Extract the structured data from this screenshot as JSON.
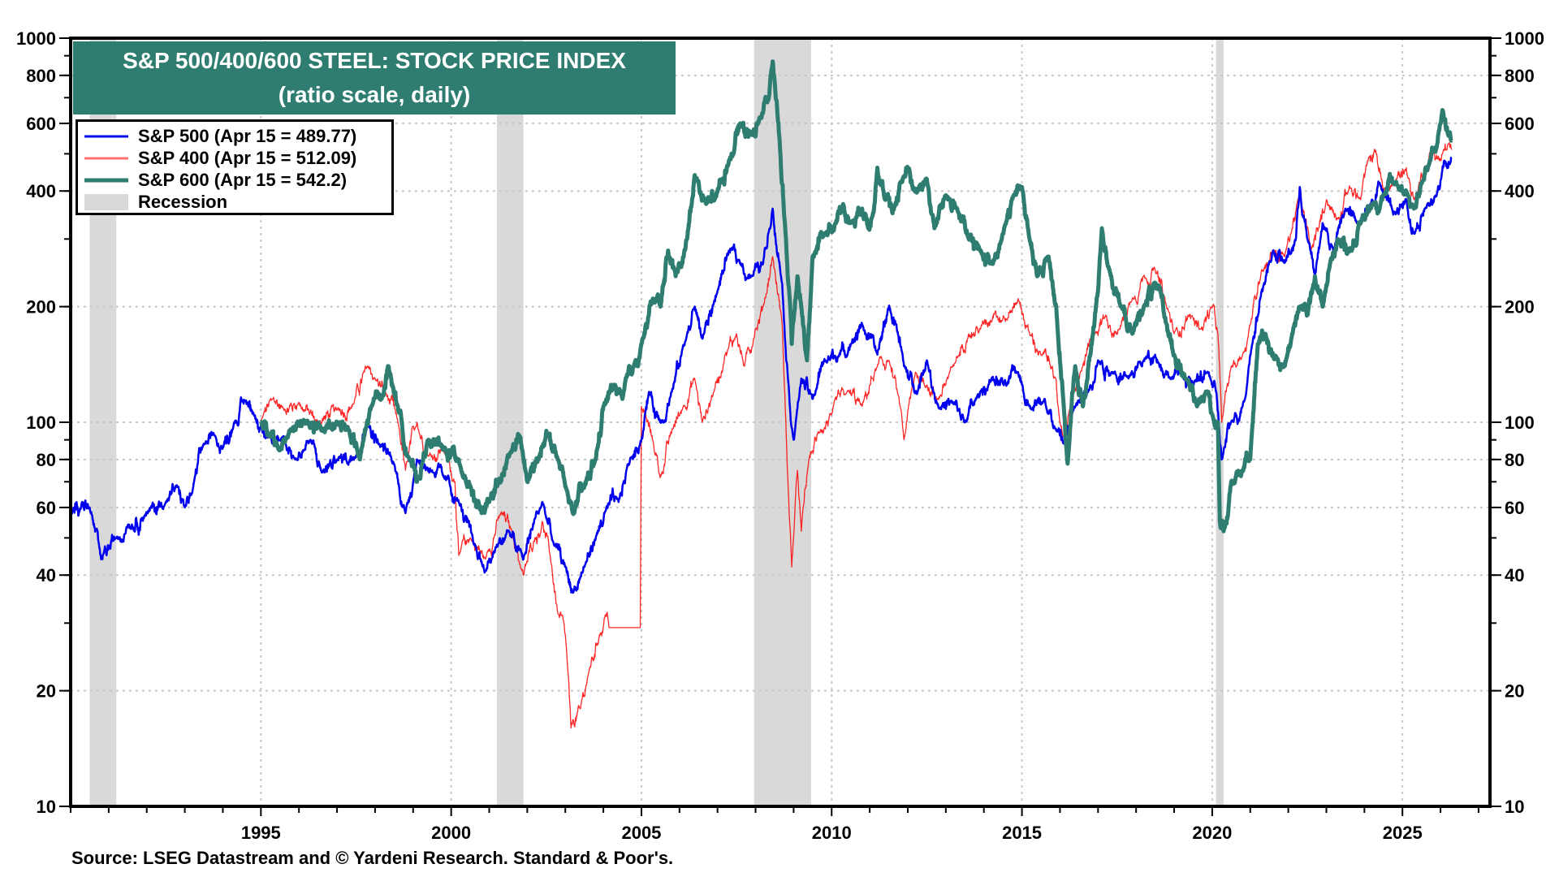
{
  "chart_data": {
    "type": "line",
    "title": "S&P 500/400/600 STEEL: STOCK PRICE INDEX",
    "subtitle": "(ratio scale, daily)",
    "xlabel": "",
    "ylabel": "",
    "yscale": "log",
    "ylim": [
      10,
      1000
    ],
    "xlim": [
      1990.0,
      2027.3
    ],
    "y_ticks": [
      10,
      20,
      40,
      60,
      80,
      100,
      200,
      400,
      600,
      800,
      1000
    ],
    "y_tick_labels": [
      "10",
      "20",
      "40",
      "60",
      "80",
      "100",
      "200",
      "400",
      "600",
      "800",
      "1000"
    ],
    "x_ticks": [
      1995,
      2000,
      2005,
      2010,
      2015,
      2020,
      2025
    ],
    "x_tick_labels": [
      "1995",
      "2000",
      "2005",
      "2010",
      "2015",
      "2020",
      "2025"
    ],
    "grid": true,
    "legend_position": "top-left",
    "recessions": [
      {
        "start": 1990.5,
        "end": 1991.2
      },
      {
        "start": 2001.2,
        "end": 2001.9
      },
      {
        "start": 2007.96,
        "end": 2009.46
      },
      {
        "start": 2020.1,
        "end": 2020.3
      }
    ],
    "recession_label": "Recession",
    "recession_color": "#d9d9d9",
    "series": [
      {
        "name": "S&P 500",
        "label": "S&P 500 (Apr 15 = 489.77)",
        "color": "#0000ee",
        "last_value": 489.77,
        "x": [
          1990.0,
          1990.3,
          1990.5,
          1990.8,
          1991.2,
          1991.5,
          1992.0,
          1992.5,
          1992.8,
          1993.0,
          1993.2,
          1993.5,
          1993.8,
          1994.0,
          1994.3,
          1994.6,
          1994.8,
          1995.0,
          1995.3,
          1995.6,
          1995.9,
          1996.3,
          1996.6,
          1997.0,
          1997.5,
          1997.8,
          1998.1,
          1998.5,
          1998.8,
          1999.1,
          1999.5,
          1999.8,
          2000.2,
          2000.6,
          2000.9,
          2001.2,
          2001.5,
          2001.9,
          2002.2,
          2002.4,
          2002.7,
          2003.0,
          2003.2,
          2003.5,
          2003.8,
          2004.1,
          2004.4,
          2004.7,
          2005.0,
          2005.2,
          2005.5,
          2005.8,
          2006.2,
          2006.4,
          2006.6,
          2007.0,
          2007.3,
          2007.6,
          2007.9,
          2008.2,
          2008.45,
          2008.7,
          2008.85,
          2009.0,
          2009.2,
          2009.5,
          2009.8,
          2010.2,
          2010.5,
          2010.8,
          2011.2,
          2011.5,
          2011.7,
          2011.9,
          2012.2,
          2012.5,
          2012.8,
          2013.2,
          2013.5,
          2013.8,
          2014.2,
          2014.6,
          2014.9,
          2015.2,
          2015.6,
          2015.9,
          2016.1,
          2016.4,
          2016.8,
          2017.0,
          2017.4,
          2017.8,
          2018.2,
          2018.5,
          2018.9,
          2019.2,
          2019.5,
          2019.9,
          2020.1,
          2020.25,
          2020.5,
          2020.8,
          2021.0,
          2021.3,
          2021.6,
          2021.9,
          2022.2,
          2022.3,
          2022.5,
          2022.7,
          2022.9,
          2023.2,
          2023.5,
          2023.8,
          2024.2,
          2024.4,
          2024.8,
          2025.1,
          2025.3,
          2025.6,
          2025.9,
          2026.1,
          2026.29
        ],
        "values": [
          57,
          62,
          60,
          44,
          50,
          54,
          58,
          62,
          68,
          60,
          66,
          88,
          92,
          86,
          100,
          114,
          106,
          98,
          88,
          92,
          80,
          90,
          74,
          80,
          82,
          100,
          88,
          78,
          58,
          80,
          75,
          72,
          62,
          48,
          41,
          48,
          52,
          44,
          56,
          62,
          48,
          42,
          36,
          42,
          50,
          60,
          62,
          80,
          90,
          120,
          100,
          120,
          170,
          200,
          165,
          220,
          280,
          260,
          240,
          260,
          360,
          230,
          130,
          90,
          130,
          115,
          145,
          150,
          160,
          180,
          150,
          200,
          180,
          140,
          120,
          145,
          110,
          112,
          100,
          115,
          130,
          125,
          135,
          110,
          115,
          95,
          88,
          110,
          125,
          145,
          135,
          130,
          145,
          150,
          130,
          135,
          125,
          135,
          120,
          80,
          100,
          110,
          150,
          220,
          280,
          260,
          300,
          410,
          300,
          240,
          330,
          280,
          360,
          330,
          380,
          420,
          350,
          380,
          310,
          360,
          390,
          480,
          489.77
        ]
      },
      {
        "name": "S&P 400",
        "label": "S&P 400 (Apr 15 = 512.09)",
        "color": "#ff0000",
        "last_value": 512.09,
        "x": [
          1995.0,
          1995.3,
          1995.6,
          1996.0,
          1996.5,
          1997.0,
          1997.4,
          1997.8,
          1998.0,
          1998.3,
          1998.6,
          1998.8,
          1999.1,
          1999.4,
          1999.8,
          2000.1,
          2000.2,
          2000.5,
          2000.9,
          2001.3,
          2001.6,
          2001.9,
          2002.2,
          2002.4,
          2002.6,
          2002.8,
          2003.0,
          2003.15,
          2003.4,
          2003.6,
          2003.9,
          2004.1,
          2004.15,
          2004.97,
          2005.0,
          2005.3,
          2005.5,
          2005.8,
          2006.1,
          2006.4,
          2006.6,
          2006.9,
          2007.2,
          2007.5,
          2007.7,
          2008.0,
          2008.2,
          2008.45,
          2008.7,
          2008.85,
          2008.95,
          2009.1,
          2009.2,
          2009.4,
          2009.7,
          2010.0,
          2010.4,
          2010.8,
          2011.2,
          2011.5,
          2011.8,
          2011.9,
          2012.2,
          2012.5,
          2012.8,
          2013.2,
          2013.6,
          2013.9,
          2014.3,
          2014.6,
          2014.9,
          2015.2,
          2015.5,
          2015.8,
          2016.0,
          2016.1,
          2016.5,
          2016.9,
          2017.2,
          2017.5,
          2017.9,
          2018.2,
          2018.5,
          2018.8,
          2019.0,
          2019.4,
          2019.7,
          2020.0,
          2020.15,
          2020.25,
          2020.5,
          2020.8,
          2021.0,
          2021.3,
          2021.6,
          2021.9,
          2022.3,
          2022.6,
          2022.8,
          2023.0,
          2023.3,
          2023.6,
          2023.9,
          2024.1,
          2024.3,
          2024.5,
          2024.8,
          2025.1,
          2025.3,
          2025.6,
          2025.8,
          2026.0,
          2026.2,
          2026.29
        ],
        "values": [
          100,
          115,
          108,
          112,
          100,
          108,
          110,
          140,
          130,
          118,
          100,
          75,
          100,
          82,
          85,
          70,
          45,
          50,
          44,
          58,
          52,
          40,
          50,
          55,
          45,
          32,
          28,
          16,
          18,
          22,
          28,
          32,
          29.2,
          29.2,
          110,
          90,
          72,
          95,
          110,
          130,
          100,
          120,
          150,
          170,
          140,
          175,
          200,
          270,
          180,
          70,
          42,
          75,
          52,
          80,
          95,
          105,
          120,
          110,
          140,
          145,
          110,
          90,
          135,
          125,
          115,
          140,
          170,
          175,
          195,
          185,
          210,
          170,
          150,
          140,
          100,
          92,
          130,
          170,
          190,
          170,
          210,
          240,
          250,
          200,
          170,
          190,
          175,
          200,
          170,
          100,
          140,
          150,
          180,
          250,
          280,
          270,
          390,
          280,
          320,
          380,
          340,
          410,
          380,
          480,
          510,
          400,
          420,
          460,
          380,
          460,
          510,
          480,
          530,
          512.09
        ]
      },
      {
        "name": "S&P 600",
        "label": "S&P 600 (Apr 15 = 542.2)",
        "color": "#2e7d70",
        "last_value": 542.2,
        "x": [
          1995.0,
          1995.2,
          1995.5,
          1995.8,
          1996.2,
          1996.6,
          1997.0,
          1997.3,
          1997.6,
          1997.9,
          1998.2,
          1998.35,
          1998.6,
          1998.9,
          1999.1,
          1999.4,
          1999.8,
          2000.2,
          2000.5,
          2000.8,
          2001.0,
          2001.3,
          2001.6,
          2001.8,
          2002.0,
          2002.3,
          2002.5,
          2002.8,
          2003.0,
          2003.2,
          2003.5,
          2003.8,
          2004.0,
          2004.3,
          2004.5,
          2004.8,
          2005.0,
          2005.3,
          2005.5,
          2005.7,
          2005.9,
          2006.2,
          2006.4,
          2006.7,
          2007.0,
          2007.3,
          2007.6,
          2007.9,
          2008.1,
          2008.35,
          2008.45,
          2008.6,
          2008.8,
          2008.95,
          2009.1,
          2009.2,
          2009.35,
          2009.5,
          2009.8,
          2010.1,
          2010.3,
          2010.5,
          2010.8,
          2011.0,
          2011.2,
          2011.4,
          2011.6,
          2011.8,
          2012.0,
          2012.2,
          2012.5,
          2012.7,
          2013.0,
          2013.3,
          2013.6,
          2013.9,
          2014.2,
          2014.5,
          2014.8,
          2015.0,
          2015.2,
          2015.4,
          2015.7,
          2015.9,
          2016.1,
          2016.2,
          2016.4,
          2016.6,
          2016.8,
          2017.0,
          2017.1,
          2017.3,
          2017.6,
          2017.9,
          2018.2,
          2018.5,
          2018.8,
          2019.0,
          2019.3,
          2019.6,
          2019.9,
          2020.0,
          2020.15,
          2020.2,
          2020.3,
          2020.5,
          2020.8,
          2021.0,
          2021.2,
          2021.4,
          2021.6,
          2021.9,
          2022.1,
          2022.3,
          2022.5,
          2022.7,
          2022.9,
          2023.1,
          2023.3,
          2023.6,
          2023.9,
          2024.2,
          2024.5,
          2024.8,
          2025.1,
          2025.3,
          2025.5,
          2025.7,
          2025.9,
          2026.05,
          2026.2,
          2026.29
        ],
        "values": [
          100,
          92,
          85,
          96,
          100,
          95,
          100,
          96,
          80,
          110,
          118,
          140,
          110,
          80,
          70,
          90,
          85,
          80,
          68,
          58,
          62,
          70,
          85,
          92,
          70,
          80,
          95,
          80,
          68,
          58,
          68,
          80,
          110,
          125,
          115,
          140,
          160,
          210,
          200,
          280,
          240,
          300,
          440,
          370,
          400,
          480,
          600,
          560,
          620,
          700,
          870,
          600,
          300,
          160,
          240,
          200,
          145,
          270,
          310,
          330,
          370,
          330,
          360,
          320,
          460,
          380,
          350,
          420,
          460,
          400,
          430,
          320,
          390,
          360,
          300,
          280,
          260,
          310,
          390,
          410,
          300,
          240,
          270,
          200,
          110,
          78,
          140,
          110,
          150,
          220,
          320,
          250,
          200,
          170,
          200,
          230,
          180,
          150,
          130,
          110,
          120,
          105,
          100,
          55,
          52,
          70,
          75,
          80,
          160,
          170,
          150,
          140,
          170,
          200,
          190,
          240,
          200,
          260,
          300,
          280,
          330,
          370,
          390,
          420,
          400,
          360,
          420,
          470,
          520,
          650,
          560,
          542.2
        ]
      }
    ]
  },
  "source_note": "Source: LSEG Datastream and © Yardeni Research. Standard & Poor's."
}
